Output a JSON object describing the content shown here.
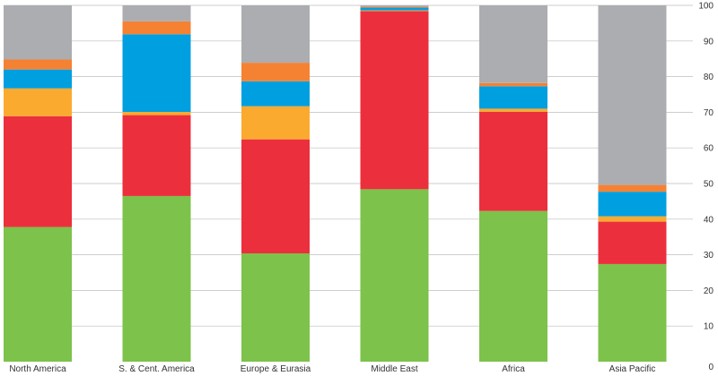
{
  "chart_data": {
    "type": "bar",
    "stacked": true,
    "categories": [
      "North America",
      "S. & Cent. America",
      "Europe & Eurasia",
      "Middle East",
      "Africa",
      "Asia Pacific"
    ],
    "series": [
      {
        "color": "#7dc24b",
        "values": [
          37.8,
          46.5,
          30.4,
          48.4,
          42.3,
          27.4
        ]
      },
      {
        "color": "#ec2f3d",
        "values": [
          31.1,
          22.7,
          32.0,
          50.0,
          27.8,
          11.9
        ]
      },
      {
        "color": "#fbaa30",
        "values": [
          7.8,
          0.9,
          9.3,
          0.2,
          0.9,
          1.5
        ]
      },
      {
        "color": "#009fe0",
        "values": [
          5.3,
          21.8,
          7.0,
          0.8,
          6.3,
          6.9
        ]
      },
      {
        "color": "#f58233",
        "values": [
          2.8,
          3.6,
          5.2,
          0.3,
          0.9,
          1.9
        ]
      },
      {
        "color": "#acadb1",
        "values": [
          15.2,
          4.5,
          16.1,
          0.3,
          21.8,
          50.4
        ]
      }
    ],
    "title": "",
    "xlabel": "",
    "ylabel": "",
    "ylim": [
      0,
      100
    ],
    "yticks": [
      0,
      10,
      20,
      30,
      40,
      50,
      60,
      70,
      80,
      90,
      100
    ],
    "yaxis_position": "right",
    "grid": true
  }
}
